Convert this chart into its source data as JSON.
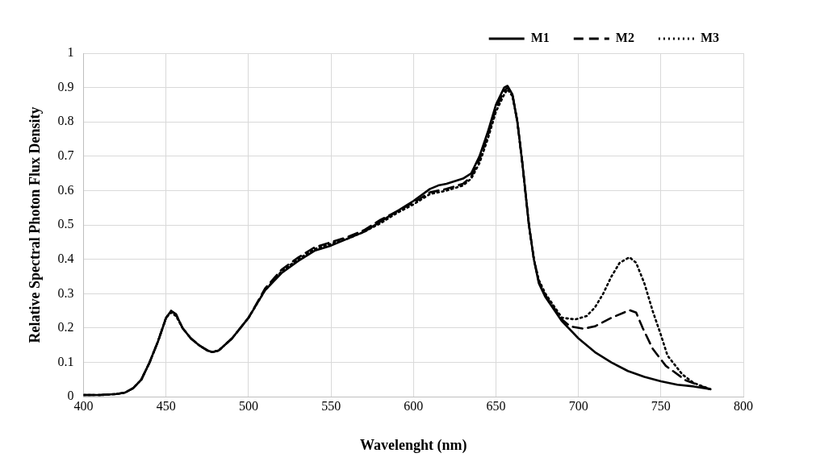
{
  "chart_data": {
    "type": "line",
    "xlabel": "Wavelenght (nm)",
    "ylabel": "Relative Spectral Photon Flux Density",
    "xlim": [
      400,
      800
    ],
    "xticks": [
      400,
      450,
      500,
      550,
      600,
      650,
      700,
      750,
      800
    ],
    "ylim": [
      0,
      1
    ],
    "yticks": [
      0,
      0.1,
      0.2,
      0.3,
      0.4,
      0.5,
      0.6,
      0.7,
      0.8,
      0.9,
      1
    ],
    "grid": true,
    "legend": "top",
    "marker": "none",
    "series": [
      {
        "name": "M1",
        "color": "#000000",
        "line_style": "solid",
        "x": [
          400,
          410,
          420,
          425,
          430,
          435,
          440,
          445,
          450,
          453,
          456,
          460,
          465,
          470,
          475,
          478,
          482,
          490,
          500,
          510,
          520,
          530,
          540,
          550,
          560,
          570,
          580,
          590,
          600,
          610,
          615,
          620,
          630,
          635,
          640,
          645,
          650,
          655,
          657,
          660,
          663,
          666,
          670,
          673,
          676,
          680,
          690,
          700,
          710,
          720,
          730,
          740,
          750,
          760,
          770,
          780
        ],
        "values": [
          0.005,
          0.005,
          0.008,
          0.012,
          0.025,
          0.05,
          0.1,
          0.16,
          0.23,
          0.25,
          0.24,
          0.2,
          0.17,
          0.15,
          0.135,
          0.13,
          0.135,
          0.17,
          0.23,
          0.31,
          0.36,
          0.395,
          0.425,
          0.44,
          0.46,
          0.48,
          0.51,
          0.54,
          0.57,
          0.605,
          0.615,
          0.62,
          0.635,
          0.65,
          0.7,
          0.77,
          0.85,
          0.9,
          0.905,
          0.88,
          0.8,
          0.68,
          0.5,
          0.4,
          0.33,
          0.29,
          0.22,
          0.17,
          0.13,
          0.1,
          0.075,
          0.058,
          0.045,
          0.035,
          0.03,
          0.022
        ]
      },
      {
        "name": "M2",
        "color": "#000000",
        "line_style": "dashed",
        "x": [
          400,
          410,
          420,
          425,
          430,
          435,
          440,
          445,
          450,
          453,
          456,
          460,
          465,
          470,
          475,
          478,
          482,
          490,
          500,
          510,
          520,
          530,
          540,
          550,
          560,
          570,
          580,
          590,
          600,
          610,
          620,
          630,
          635,
          640,
          645,
          650,
          655,
          657,
          660,
          663,
          666,
          670,
          673,
          676,
          680,
          690,
          695,
          703,
          710,
          720,
          731,
          735,
          739,
          745,
          753,
          765,
          775,
          780
        ],
        "values": [
          0.005,
          0.005,
          0.008,
          0.012,
          0.025,
          0.05,
          0.1,
          0.16,
          0.23,
          0.25,
          0.24,
          0.2,
          0.17,
          0.15,
          0.135,
          0.13,
          0.135,
          0.17,
          0.23,
          0.315,
          0.37,
          0.405,
          0.435,
          0.45,
          0.465,
          0.485,
          0.515,
          0.54,
          0.565,
          0.595,
          0.605,
          0.62,
          0.64,
          0.69,
          0.76,
          0.84,
          0.89,
          0.9,
          0.88,
          0.8,
          0.68,
          0.5,
          0.4,
          0.335,
          0.295,
          0.225,
          0.205,
          0.198,
          0.205,
          0.23,
          0.252,
          0.245,
          0.2,
          0.14,
          0.09,
          0.048,
          0.03,
          0.022
        ]
      },
      {
        "name": "M3",
        "color": "#000000",
        "line_style": "dotted",
        "x": [
          400,
          410,
          420,
          425,
          430,
          435,
          440,
          445,
          450,
          453,
          456,
          460,
          465,
          470,
          475,
          478,
          482,
          490,
          500,
          510,
          520,
          530,
          540,
          550,
          560,
          570,
          580,
          590,
          600,
          610,
          620,
          630,
          635,
          640,
          645,
          650,
          655,
          657,
          660,
          663,
          666,
          670,
          673,
          676,
          680,
          690,
          698,
          705,
          710,
          715,
          720,
          725,
          731,
          735,
          740,
          745,
          750,
          754,
          763,
          770,
          780
        ],
        "values": [
          0.005,
          0.005,
          0.008,
          0.012,
          0.025,
          0.05,
          0.1,
          0.16,
          0.23,
          0.245,
          0.235,
          0.2,
          0.17,
          0.15,
          0.135,
          0.13,
          0.135,
          0.17,
          0.23,
          0.31,
          0.365,
          0.4,
          0.43,
          0.445,
          0.46,
          0.48,
          0.505,
          0.535,
          0.56,
          0.59,
          0.6,
          0.615,
          0.635,
          0.68,
          0.75,
          0.83,
          0.88,
          0.895,
          0.875,
          0.8,
          0.68,
          0.5,
          0.4,
          0.34,
          0.3,
          0.23,
          0.225,
          0.235,
          0.26,
          0.3,
          0.35,
          0.39,
          0.406,
          0.39,
          0.33,
          0.25,
          0.18,
          0.12,
          0.065,
          0.04,
          0.022
        ]
      }
    ]
  }
}
